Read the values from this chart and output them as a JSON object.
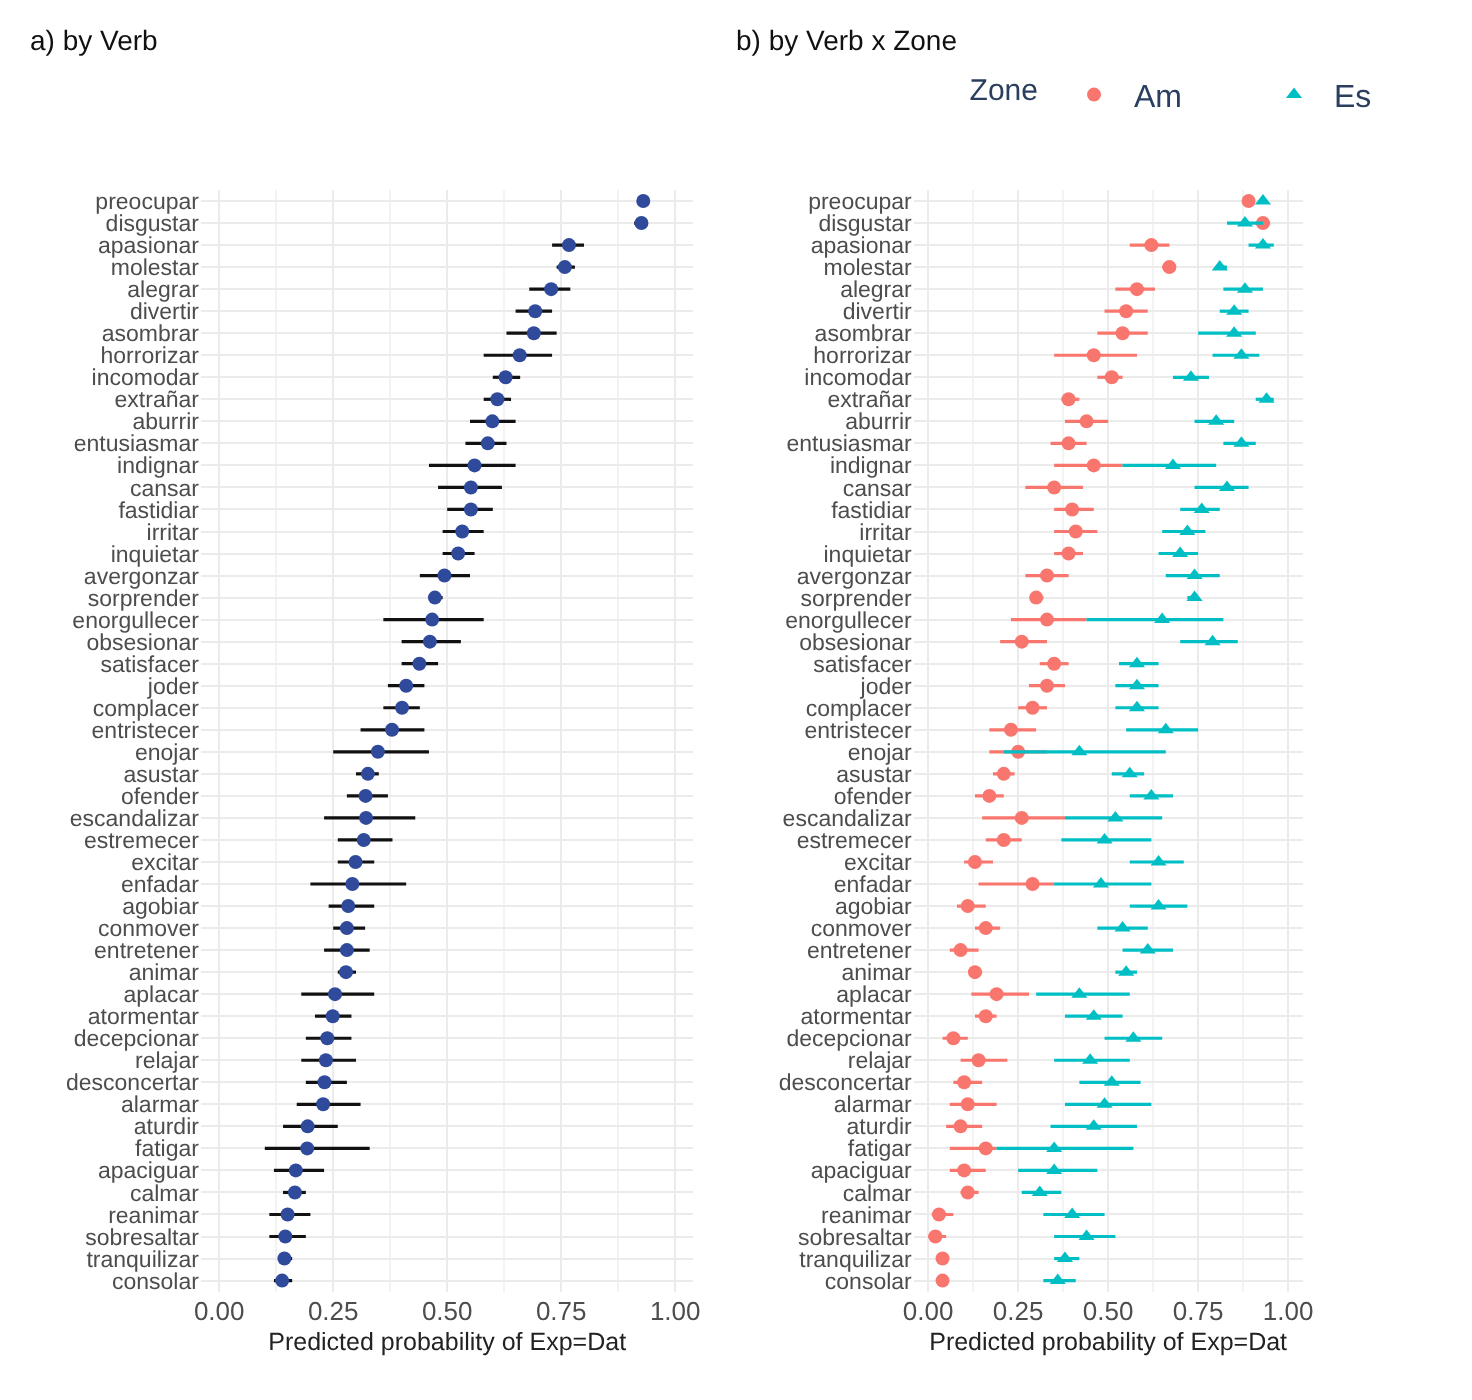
{
  "chart_data": [
    {
      "type": "scatter",
      "orientation": "horizontal",
      "title": "a) by Verb",
      "xlabel": "Predicted probability of Exp=Dat",
      "marker": "circle",
      "grid": true,
      "legend": false,
      "categories": [
        "preocupar",
        "disgustar",
        "apasionar",
        "molestar",
        "alegrar",
        "divertir",
        "asombrar",
        "horrorizar",
        "incomodar",
        "extrañar",
        "aburrir",
        "entusiasmar",
        "indignar",
        "cansar",
        "fastidiar",
        "irritar",
        "inquietar",
        "avergonzar",
        "sorprender",
        "enorgullecer",
        "obsesionar",
        "satisfacer",
        "joder",
        "complacer",
        "entristecer",
        "enojar",
        "asustar",
        "ofender",
        "escandalizar",
        "estremecer",
        "excitar",
        "enfadar",
        "agobiar",
        "conmover",
        "entretener",
        "animar",
        "aplacar",
        "atormentar",
        "decepcionar",
        "relajar",
        "desconcertar",
        "alarmar",
        "aturdir",
        "fatigar",
        "apaciguar",
        "calmar",
        "reanimar",
        "sobresaltar",
        "tranquilizar",
        "consolar"
      ],
      "xlim": [
        -0.04,
        1.04
      ],
      "xticks": [
        {
          "value": 0,
          "label": "0.00"
        },
        {
          "value": 0.25,
          "label": "0.25"
        },
        {
          "value": 0.5,
          "label": "0.50"
        },
        {
          "value": 0.75,
          "label": "0.75"
        },
        {
          "value": 1,
          "label": "1.00"
        }
      ],
      "series": [
        {
          "color": "#2f4a9b",
          "values": [
            0.93,
            0.926,
            0.767,
            0.758,
            0.728,
            0.693,
            0.69,
            0.659,
            0.628,
            0.61,
            0.599,
            0.589,
            0.56,
            0.552,
            0.552,
            0.533,
            0.524,
            0.494,
            0.473,
            0.467,
            0.462,
            0.439,
            0.41,
            0.401,
            0.379,
            0.348,
            0.326,
            0.321,
            0.322,
            0.317,
            0.299,
            0.292,
            0.283,
            0.28,
            0.28,
            0.278,
            0.254,
            0.249,
            0.237,
            0.234,
            0.231,
            0.228,
            0.194,
            0.193,
            0.168,
            0.166,
            0.15,
            0.145,
            0.143,
            0.138
          ],
          "errors": [
            null,
            [
              0.91,
              0.94
            ],
            [
              0.73,
              0.8
            ],
            [
              0.74,
              0.78
            ],
            [
              0.68,
              0.77
            ],
            [
              0.65,
              0.73
            ],
            [
              0.63,
              0.74
            ],
            [
              0.58,
              0.73
            ],
            [
              0.6,
              0.66
            ],
            [
              0.58,
              0.64
            ],
            [
              0.55,
              0.65
            ],
            [
              0.54,
              0.63
            ],
            [
              0.46,
              0.65
            ],
            [
              0.48,
              0.62
            ],
            [
              0.5,
              0.6
            ],
            [
              0.49,
              0.58
            ],
            [
              0.49,
              0.56
            ],
            [
              0.44,
              0.55
            ],
            [
              0.46,
              0.49
            ],
            [
              0.36,
              0.58
            ],
            [
              0.4,
              0.53
            ],
            [
              0.4,
              0.48
            ],
            [
              0.37,
              0.45
            ],
            [
              0.36,
              0.44
            ],
            [
              0.31,
              0.45
            ],
            [
              0.25,
              0.46
            ],
            [
              0.3,
              0.35
            ],
            [
              0.28,
              0.37
            ],
            [
              0.23,
              0.43
            ],
            [
              0.26,
              0.38
            ],
            [
              0.26,
              0.34
            ],
            [
              0.2,
              0.41
            ],
            [
              0.24,
              0.34
            ],
            [
              0.25,
              0.32
            ],
            [
              0.23,
              0.33
            ],
            [
              0.26,
              0.3
            ],
            [
              0.18,
              0.34
            ],
            [
              0.21,
              0.29
            ],
            [
              0.19,
              0.29
            ],
            [
              0.18,
              0.3
            ],
            [
              0.19,
              0.28
            ],
            [
              0.17,
              0.31
            ],
            [
              0.14,
              0.26
            ],
            [
              0.1,
              0.33
            ],
            [
              0.12,
              0.23
            ],
            [
              0.14,
              0.19
            ],
            [
              0.11,
              0.2
            ],
            [
              0.11,
              0.19
            ],
            [
              0.13,
              0.16
            ],
            [
              0.12,
              0.16
            ]
          ]
        }
      ]
    },
    {
      "type": "scatter",
      "orientation": "horizontal",
      "title": "b) by Verb x Zone",
      "xlabel": "Predicted probability of Exp=Dat",
      "legend_title": "Zone",
      "legend": "top",
      "grid": true,
      "categories": [
        "preocupar",
        "disgustar",
        "apasionar",
        "molestar",
        "alegrar",
        "divertir",
        "asombrar",
        "horrorizar",
        "incomodar",
        "extrañar",
        "aburrir",
        "entusiasmar",
        "indignar",
        "cansar",
        "fastidiar",
        "irritar",
        "inquietar",
        "avergonzar",
        "sorprender",
        "enorgullecer",
        "obsesionar",
        "satisfacer",
        "joder",
        "complacer",
        "entristecer",
        "enojar",
        "asustar",
        "ofender",
        "escandalizar",
        "estremecer",
        "excitar",
        "enfadar",
        "agobiar",
        "conmover",
        "entretener",
        "animar",
        "aplacar",
        "atormentar",
        "decepcionar",
        "relajar",
        "desconcertar",
        "alarmar",
        "aturdir",
        "fatigar",
        "apaciguar",
        "calmar",
        "reanimar",
        "sobresaltar",
        "tranquilizar",
        "consolar"
      ],
      "xlim": [
        -0.04,
        1.04
      ],
      "xticks": [
        {
          "value": 0,
          "label": "0.00"
        },
        {
          "value": 0.25,
          "label": "0.25"
        },
        {
          "value": 0.5,
          "label": "0.50"
        },
        {
          "value": 0.75,
          "label": "0.75"
        },
        {
          "value": 1,
          "label": "1.00"
        }
      ],
      "series": [
        {
          "name": "Am",
          "color": "#f8766d",
          "marker": "circle",
          "values": [
            0.89,
            0.93,
            0.62,
            0.67,
            0.58,
            0.55,
            0.54,
            0.46,
            0.51,
            0.39,
            0.44,
            0.39,
            0.46,
            0.35,
            0.4,
            0.41,
            0.39,
            0.33,
            0.3,
            0.33,
            0.26,
            0.35,
            0.33,
            0.29,
            0.23,
            0.25,
            0.21,
            0.17,
            0.26,
            0.21,
            0.13,
            0.29,
            0.11,
            0.16,
            0.09,
            0.13,
            0.19,
            0.16,
            0.07,
            0.14,
            0.1,
            0.11,
            0.09,
            0.16,
            0.1,
            0.11,
            0.03,
            0.02,
            0.04,
            0.04
          ],
          "errors": [
            null,
            [
              0.91,
              0.95
            ],
            [
              0.56,
              0.67
            ],
            [
              0.65,
              0.68
            ],
            [
              0.52,
              0.63
            ],
            [
              0.49,
              0.61
            ],
            [
              0.47,
              0.61
            ],
            [
              0.35,
              0.58
            ],
            [
              0.47,
              0.54
            ],
            [
              0.37,
              0.42
            ],
            [
              0.38,
              0.5
            ],
            [
              0.34,
              0.44
            ],
            [
              0.35,
              0.54
            ],
            [
              0.27,
              0.43
            ],
            [
              0.35,
              0.46
            ],
            [
              0.35,
              0.47
            ],
            [
              0.35,
              0.43
            ],
            [
              0.27,
              0.39
            ],
            [
              0.29,
              0.32
            ],
            [
              0.23,
              0.44
            ],
            [
              0.2,
              0.33
            ],
            [
              0.31,
              0.39
            ],
            [
              0.28,
              0.38
            ],
            [
              0.25,
              0.33
            ],
            [
              0.17,
              0.3
            ],
            [
              0.17,
              0.33
            ],
            [
              0.18,
              0.24
            ],
            [
              0.13,
              0.21
            ],
            [
              0.15,
              0.38
            ],
            [
              0.16,
              0.26
            ],
            [
              0.1,
              0.18
            ],
            [
              0.14,
              0.35
            ],
            [
              0.08,
              0.16
            ],
            [
              0.13,
              0.2
            ],
            [
              0.06,
              0.14
            ],
            [
              0.12,
              0.15
            ],
            [
              0.12,
              0.28
            ],
            [
              0.13,
              0.19
            ],
            [
              0.04,
              0.11
            ],
            [
              0.09,
              0.22
            ],
            [
              0.07,
              0.15
            ],
            [
              0.06,
              0.19
            ],
            [
              0.05,
              0.15
            ],
            [
              0.06,
              0.19
            ],
            [
              0.06,
              0.16
            ],
            [
              0.09,
              0.14
            ],
            [
              0.01,
              0.07
            ],
            [
              0.0,
              0.05
            ],
            null,
            [
              0.03,
              0.05
            ]
          ]
        },
        {
          "name": "Es",
          "color": "#00bfc4",
          "marker": "triangle",
          "values": [
            0.93,
            0.88,
            0.93,
            0.81,
            0.88,
            0.85,
            0.85,
            0.87,
            0.73,
            0.94,
            0.8,
            0.87,
            0.68,
            0.83,
            0.76,
            0.72,
            0.7,
            0.74,
            0.74,
            0.65,
            0.79,
            0.58,
            0.58,
            0.58,
            0.66,
            0.42,
            0.56,
            0.62,
            0.52,
            0.49,
            0.64,
            0.48,
            0.64,
            0.54,
            0.61,
            0.55,
            0.42,
            0.46,
            0.57,
            0.45,
            0.51,
            0.49,
            0.46,
            0.35,
            0.35,
            0.31,
            0.4,
            0.44,
            0.38,
            0.36
          ],
          "errors": [
            [
              0.92,
              0.94
            ],
            [
              0.83,
              0.93
            ],
            [
              0.89,
              0.96
            ],
            [
              0.8,
              0.83
            ],
            [
              0.82,
              0.93
            ],
            [
              0.81,
              0.89
            ],
            [
              0.75,
              0.91
            ],
            [
              0.79,
              0.92
            ],
            [
              0.68,
              0.78
            ],
            [
              0.91,
              0.96
            ],
            [
              0.74,
              0.85
            ],
            [
              0.82,
              0.91
            ],
            [
              0.54,
              0.8
            ],
            [
              0.74,
              0.89
            ],
            [
              0.7,
              0.81
            ],
            [
              0.65,
              0.77
            ],
            [
              0.64,
              0.75
            ],
            [
              0.66,
              0.81
            ],
            [
              0.72,
              0.75
            ],
            [
              0.44,
              0.82
            ],
            [
              0.7,
              0.86
            ],
            [
              0.53,
              0.64
            ],
            [
              0.52,
              0.64
            ],
            [
              0.52,
              0.64
            ],
            [
              0.55,
              0.75
            ],
            [
              0.21,
              0.66
            ],
            [
              0.51,
              0.6
            ],
            [
              0.56,
              0.68
            ],
            [
              0.38,
              0.65
            ],
            [
              0.37,
              0.62
            ],
            [
              0.56,
              0.71
            ],
            [
              0.35,
              0.62
            ],
            [
              0.56,
              0.72
            ],
            [
              0.47,
              0.61
            ],
            [
              0.54,
              0.68
            ],
            [
              0.52,
              0.58
            ],
            [
              0.3,
              0.56
            ],
            [
              0.38,
              0.54
            ],
            [
              0.49,
              0.65
            ],
            [
              0.35,
              0.56
            ],
            [
              0.42,
              0.59
            ],
            [
              0.38,
              0.62
            ],
            [
              0.34,
              0.58
            ],
            [
              0.19,
              0.57
            ],
            [
              0.25,
              0.47
            ],
            [
              0.26,
              0.37
            ],
            [
              0.32,
              0.49
            ],
            [
              0.35,
              0.52
            ],
            [
              0.35,
              0.42
            ],
            [
              0.32,
              0.41
            ]
          ]
        }
      ]
    }
  ]
}
